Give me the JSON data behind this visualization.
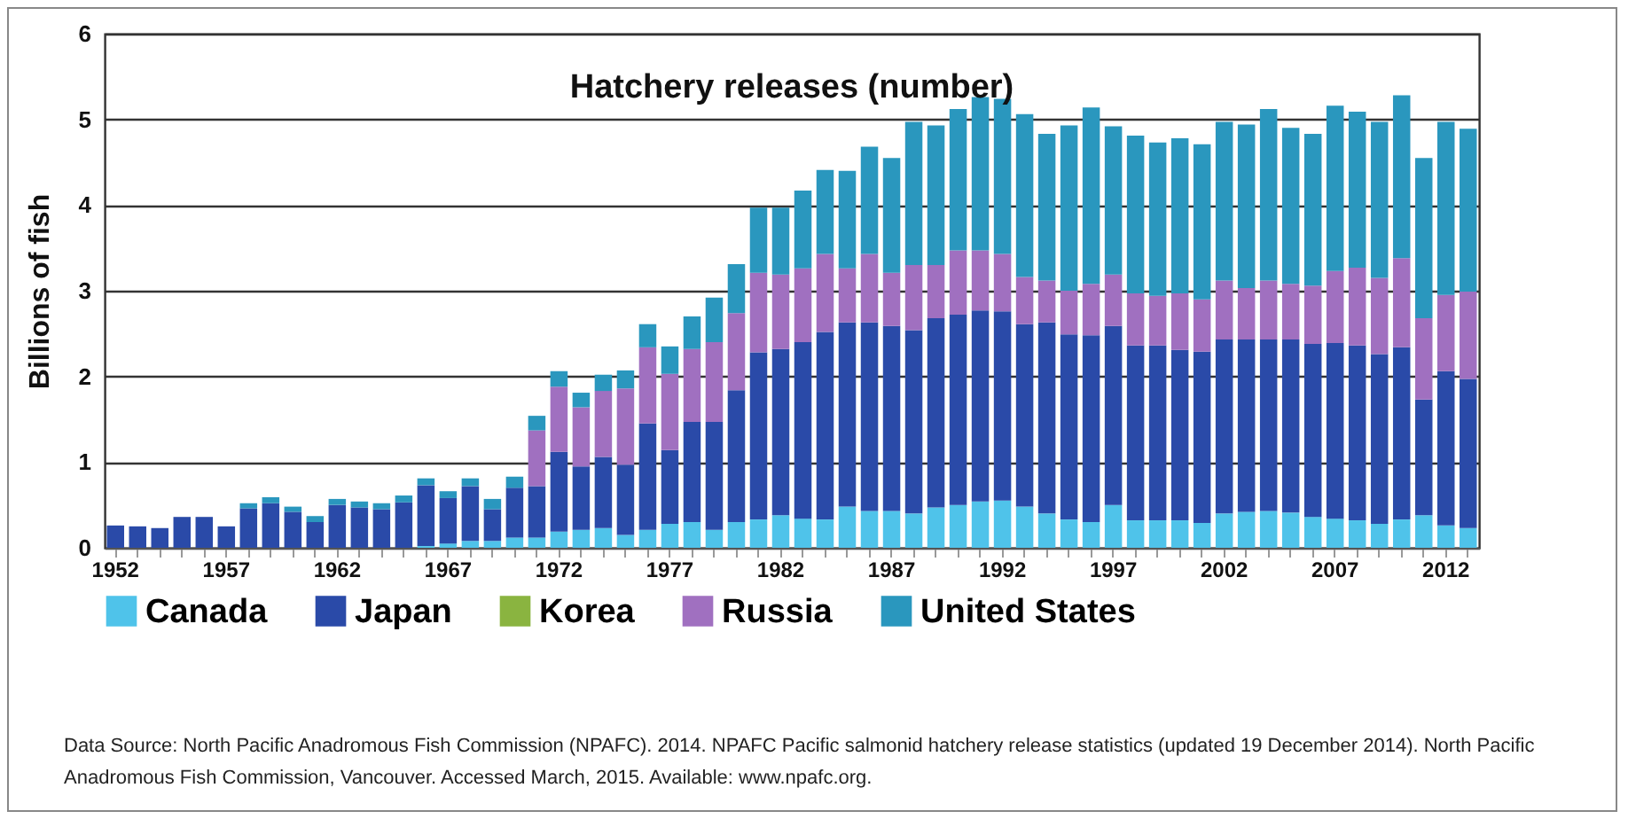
{
  "chart_data": {
    "type": "bar",
    "title": "Hatchery releases (number)",
    "ylabel": "Billions of fish",
    "stacked": true,
    "grid": "y",
    "legend": "bottom",
    "categories": [
      "1952",
      null,
      null,
      null,
      null,
      "1957",
      null,
      null,
      null,
      null,
      "1962",
      null,
      null,
      null,
      null,
      "1967",
      null,
      null,
      null,
      null,
      "1972",
      null,
      null,
      null,
      null,
      "1977",
      null,
      null,
      null,
      null,
      "1982",
      null,
      null,
      null,
      null,
      "1987",
      null,
      null,
      null,
      null,
      "1992",
      null,
      null,
      null,
      null,
      "1997",
      null,
      null,
      null,
      null,
      "2002",
      null,
      null,
      null,
      null,
      "2007",
      null,
      null,
      null,
      null,
      "2012",
      null
    ],
    "ylim": [
      0,
      6
    ],
    "yticks": [
      0,
      1,
      2,
      3,
      4,
      5,
      6
    ],
    "series": [
      {
        "name": "Canada",
        "color": "#4fc3ea",
        "values": [
          0,
          0,
          0,
          0,
          0,
          0,
          0,
          0,
          0,
          0,
          0,
          0,
          0,
          0,
          0.02,
          0.05,
          0.08,
          0.08,
          0.12,
          0.12,
          0.19,
          0.21,
          0.23,
          0.15,
          0.21,
          0.28,
          0.3,
          0.21,
          0.3,
          0.33,
          0.38,
          0.34,
          0.33,
          0.48,
          0.43,
          0.43,
          0.4,
          0.47,
          0.5,
          0.54,
          0.55,
          0.48,
          0.4,
          0.33,
          0.3,
          0.5,
          0.32,
          0.32,
          0.32,
          0.29,
          0.4,
          0.42,
          0.43,
          0.41,
          0.36,
          0.34,
          0.32,
          0.28,
          0.33,
          0.38,
          0.26,
          0.23
        ]
      },
      {
        "name": "Japan",
        "color": "#2a4aa8",
        "values": [
          0.26,
          0.25,
          0.23,
          0.36,
          0.36,
          0.25,
          0.46,
          0.52,
          0.42,
          0.3,
          0.5,
          0.47,
          0.45,
          0.53,
          0.71,
          0.53,
          0.64,
          0.37,
          0.58,
          0.6,
          0.93,
          0.74,
          0.83,
          0.82,
          1.24,
          0.86,
          1.17,
          1.26,
          1.54,
          1.95,
          1.94,
          2.06,
          2.19,
          2.15,
          2.2,
          2.16,
          2.14,
          2.21,
          2.22,
          2.23,
          2.21,
          2.13,
          2.23,
          2.16,
          2.18,
          2.09,
          2.04,
          2.04,
          1.99,
          2,
          2.03,
          2.01,
          2,
          2.02,
          2.02,
          2.05,
          2.04,
          1.98,
          2.01,
          1.35,
          1.8,
          1.74
        ]
      },
      {
        "name": "Korea",
        "color": "#8ab440",
        "values": [
          0,
          0,
          0,
          0,
          0,
          0,
          0,
          0,
          0,
          0,
          0,
          0,
          0,
          0,
          0,
          0,
          0,
          0,
          0,
          0,
          0,
          0,
          0,
          0,
          0,
          0,
          0,
          0,
          0,
          0,
          0,
          0,
          0,
          0,
          0,
          0,
          0,
          0,
          0,
          0,
          0,
          0,
          0,
          0,
          0,
          0,
          0,
          0,
          0,
          0,
          0,
          0,
          0,
          0,
          0,
          0,
          0,
          0,
          0,
          0,
          0,
          0
        ]
      },
      {
        "name": "Russia",
        "color": "#a070c0",
        "values": [
          0,
          0,
          0,
          0,
          0,
          0,
          0,
          0,
          0,
          0,
          0,
          0,
          0,
          0,
          0,
          0,
          0,
          0,
          0,
          0.65,
          0.76,
          0.69,
          0.77,
          0.89,
          0.89,
          0.89,
          0.85,
          0.93,
          0.9,
          0.93,
          0.87,
          0.86,
          0.91,
          0.63,
          0.8,
          0.62,
          0.76,
          0.62,
          0.75,
          0.7,
          0.67,
          0.55,
          0.49,
          0.51,
          0.6,
          0.6,
          0.61,
          0.58,
          0.66,
          0.61,
          0.69,
          0.6,
          0.69,
          0.65,
          0.68,
          0.84,
          0.91,
          0.89,
          1.04,
          0.95,
          0.89,
          1.02
        ]
      },
      {
        "name": "United States",
        "color": "#2a97be",
        "values": [
          0,
          0,
          0,
          0,
          0,
          0,
          0.06,
          0.07,
          0.06,
          0.07,
          0.07,
          0.07,
          0.07,
          0.08,
          0.08,
          0.08,
          0.09,
          0.12,
          0.13,
          0.17,
          0.18,
          0.17,
          0.19,
          0.21,
          0.27,
          0.32,
          0.38,
          0.52,
          0.57,
          0.76,
          0.78,
          0.91,
          0.98,
          1.14,
          1.25,
          1.34,
          1.67,
          1.63,
          1.65,
          1.79,
          1.81,
          1.9,
          1.71,
          1.93,
          2.06,
          1.73,
          1.84,
          1.79,
          1.81,
          1.81,
          1.85,
          1.91,
          2,
          1.82,
          1.77,
          1.93,
          1.82,
          1.82,
          1.9,
          1.87,
          2.02,
          1.9
        ]
      }
    ],
    "annotations": [
      "Data Source:  North Pacific Anadromous Fish Commission (NPAFC). 2014. NPAFC Pacific salmonid hatchery release statistics (updated 19 December 2014). North Pacific Anadromous Fish Commission, Vancouver. Accessed March, 2015. Available: www.npafc.org."
    ]
  }
}
